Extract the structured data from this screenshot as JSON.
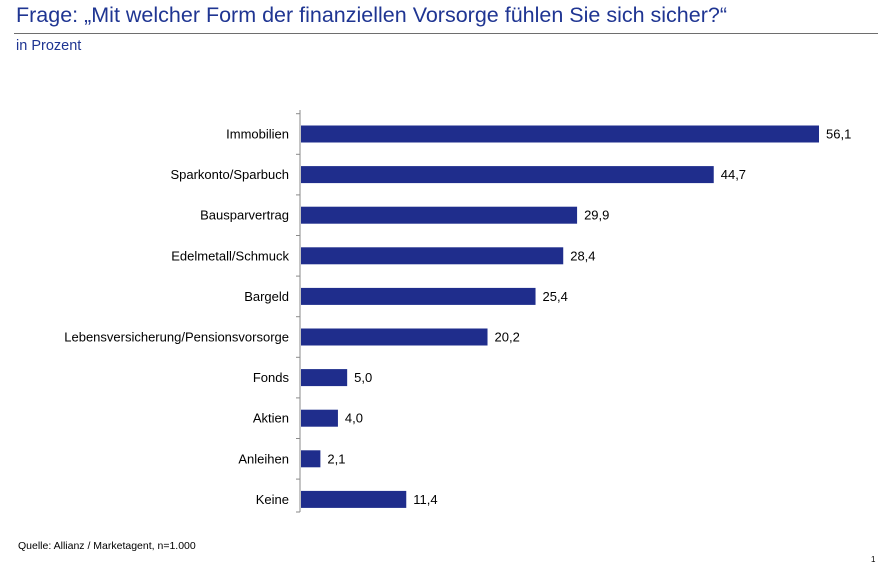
{
  "header": {
    "title": "Frage: „Mit welcher Form der finanziellen Vorsorge fühlen Sie sich sicher?“",
    "subtitle": "in Prozent"
  },
  "footer": {
    "source": "Quelle: Allianz / Marketagent, n=1.000",
    "page_number": "1"
  },
  "colors": {
    "bar": "#1f2d8c",
    "title": "#1f3592"
  },
  "chart_data": {
    "type": "bar",
    "orientation": "horizontal",
    "categories": [
      "Immobilien",
      "Sparkonto/Sparbuch",
      "Bausparvertrag",
      "Edelmetall/Schmuck",
      "Bargeld",
      "Lebensversicherung/Pensionsvorsorge",
      "Fonds",
      "Aktien",
      "Anleihen",
      "Keine"
    ],
    "values": [
      56.1,
      44.7,
      29.9,
      28.4,
      25.4,
      20.2,
      5.0,
      4.0,
      2.1,
      11.4
    ],
    "value_labels": [
      "56,1",
      "44,7",
      "29,9",
      "28,4",
      "25,4",
      "20,2",
      "5,0",
      "4,0",
      "2,1",
      "11,4"
    ],
    "title": "Frage: „Mit welcher Form der finanziellen Vorsorge fühlen Sie sich sicher?“",
    "xlabel": "",
    "ylabel": "",
    "xlim": [
      0,
      56.1
    ],
    "grid": false,
    "legend": "none"
  }
}
